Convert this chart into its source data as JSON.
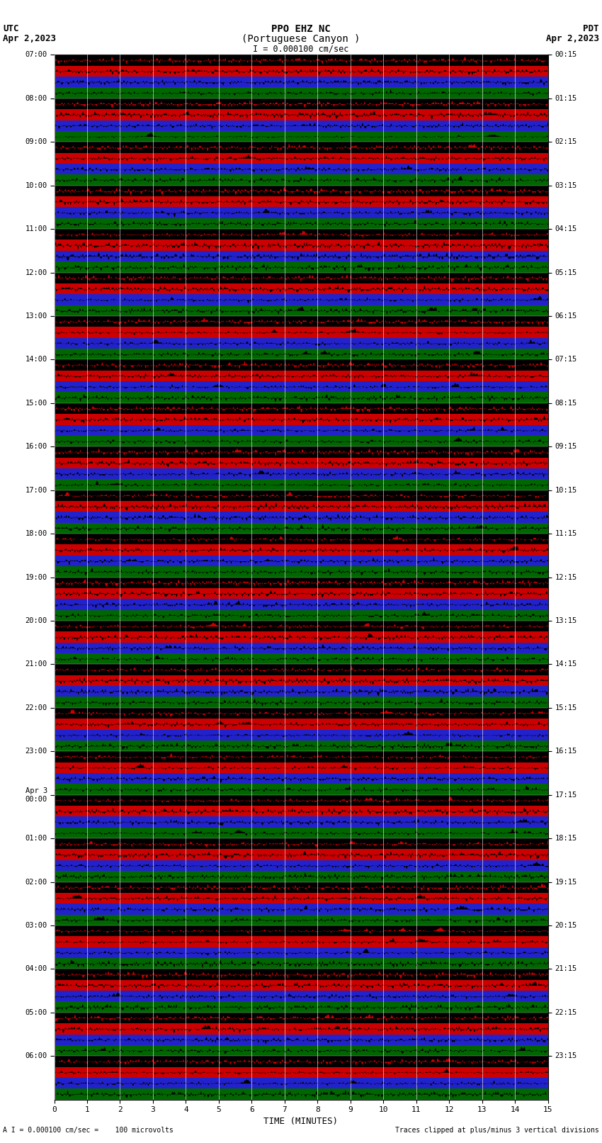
{
  "title_line1": "PPO EHZ NC",
  "title_line2": "(Portuguese Canyon )",
  "scale_text": "I = 0.000100 cm/sec",
  "utc_label": "UTC",
  "utc_date": "Apr 2,2023",
  "pdt_label": "PDT",
  "pdt_date": "Apr 2,2023",
  "bottom_left": "A I = 0.000100 cm/sec =    100 microvolts",
  "bottom_right": "Traces clipped at plus/minus 3 vertical divisions",
  "xlabel": "TIME (MINUTES)",
  "left_times": [
    "07:00",
    "08:00",
    "09:00",
    "10:00",
    "11:00",
    "12:00",
    "13:00",
    "14:00",
    "15:00",
    "16:00",
    "17:00",
    "18:00",
    "19:00",
    "20:00",
    "21:00",
    "22:00",
    "23:00",
    "Apr 3\n00:00",
    "01:00",
    "02:00",
    "03:00",
    "04:00",
    "05:00",
    "06:00"
  ],
  "right_times": [
    "00:15",
    "01:15",
    "02:15",
    "03:15",
    "04:15",
    "05:15",
    "06:15",
    "07:15",
    "08:15",
    "09:15",
    "10:15",
    "11:15",
    "12:15",
    "13:15",
    "14:15",
    "15:15",
    "16:15",
    "17:15",
    "18:15",
    "19:15",
    "20:15",
    "21:15",
    "22:15",
    "23:15"
  ],
  "n_rows": 24,
  "n_minutes": 15,
  "band_colors_top_to_bottom": [
    "#000000",
    "#cc0000",
    "#2222cc",
    "#006600"
  ],
  "wave_colors": [
    "#cc0000",
    "#000000",
    "#000000",
    "#000000"
  ],
  "fig_width": 8.5,
  "fig_height": 16.13,
  "bg_color": "#ffffff",
  "seed": 42
}
